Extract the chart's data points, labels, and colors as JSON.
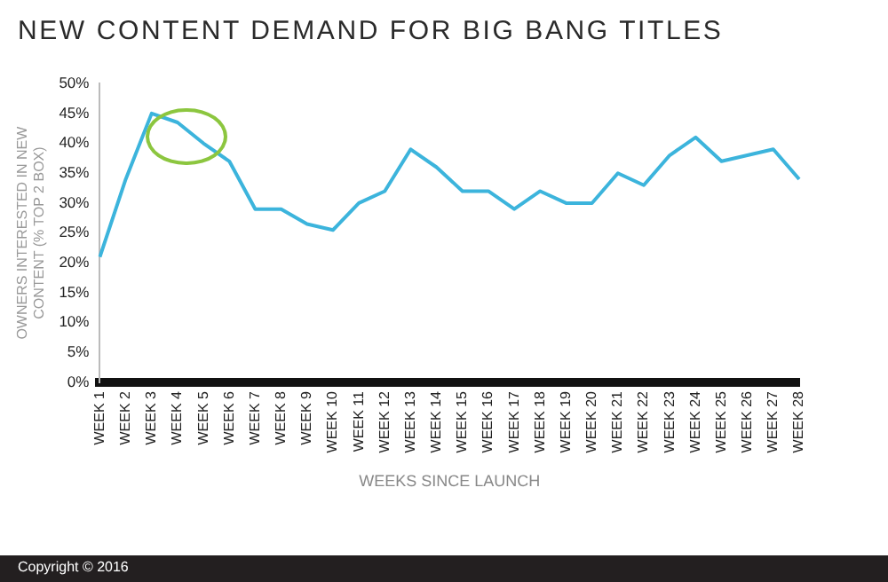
{
  "chart_data": {
    "type": "line",
    "title": "NEW CONTENT DEMAND FOR BIG BANG TITLES",
    "xlabel": "WEEKS SINCE LAUNCH",
    "ylabel": "OWNERS INTERESTED IN NEW CONTENT (% TOP 2 BOX)",
    "categories": [
      "WEEK 1",
      "WEEK 2",
      "WEEK 3",
      "WEEK 4",
      "WEEK 5",
      "WEEK 6",
      "WEEK 7",
      "WEEK 8",
      "WEEK 9",
      "WEEK 10",
      "WEEK 11",
      "WEEK 12",
      "WEEK 13",
      "WEEK 14",
      "WEEK 15",
      "WEEK 16",
      "WEEK 17",
      "WEEK 18",
      "WEEK 19",
      "WEEK 20",
      "WEEK 21",
      "WEEK 22",
      "WEEK 23",
      "WEEK 24",
      "WEEK 25",
      "WEEK 26",
      "WEEK 27",
      "WEEK 28"
    ],
    "series": [
      {
        "color": "#3cb4dc",
        "values": [
          21,
          34,
          45,
          43.5,
          40,
          37,
          29,
          29,
          26.5,
          25.5,
          30,
          32,
          39,
          36,
          32,
          32,
          29,
          32,
          30,
          30,
          35,
          33,
          38,
          41,
          37,
          38,
          39,
          34
        ]
      }
    ],
    "ylim": [
      0,
      50
    ],
    "yticks": [
      {
        "value": 0,
        "label": "0%"
      },
      {
        "value": 5,
        "label": "5%"
      },
      {
        "value": 10,
        "label": "10%"
      },
      {
        "value": 15,
        "label": "15%"
      },
      {
        "value": 20,
        "label": "20%"
      },
      {
        "value": 25,
        "label": "25%"
      },
      {
        "value": 30,
        "label": "30%"
      },
      {
        "value": 35,
        "label": "35%"
      },
      {
        "value": 40,
        "label": "40%"
      },
      {
        "value": 45,
        "label": "45%"
      },
      {
        "value": 50,
        "label": "50%"
      }
    ],
    "grid": false,
    "legend": false,
    "marker": "none",
    "line_style": "solid",
    "annotations": [
      "Copyright © 2016"
    ]
  }
}
